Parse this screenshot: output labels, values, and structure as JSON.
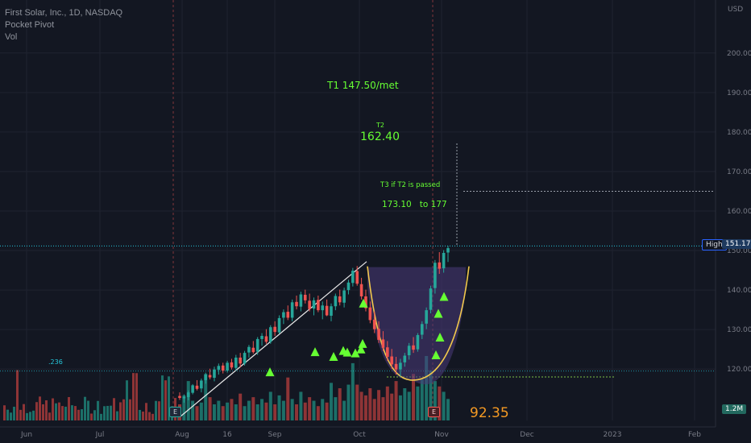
{
  "legend": {
    "symbol": "First Solar, Inc., 1D, NASDAQ",
    "indicator_1": "Pocket Pivot",
    "indicator_2": "Vol"
  },
  "annotations": {
    "t1": "T1 147.50/met",
    "t2_label": "T2",
    "t2_value": "162.40",
    "t3_label": "T3 if T2 is passed",
    "t3_range": "173.10   to 177",
    "low_value": "92.35",
    "fib_label": ".236",
    "high_label": "High",
    "high_value": "151.17",
    "vol_value": "1.2M",
    "earnings_marker": "E"
  },
  "colors": {
    "up": "#26a69a",
    "down": "#ef5350",
    "vol_up": "#1c6f68",
    "vol_down": "#8e3436",
    "signal": "#66ff33",
    "cup": "#f2c94c",
    "cup_fill": "#4a3a7a",
    "background": "#131722"
  },
  "chart_data": {
    "type": "candlestick",
    "currency": "USD",
    "y_axis_ticks": [
      120,
      130,
      140,
      150,
      160,
      170,
      180,
      190,
      200
    ],
    "ylim": [
      107,
      213
    ],
    "x_axis_labels": [
      "Jun",
      "Jul",
      "Aug",
      "16",
      "Sep",
      "Oct",
      "Nov",
      "Dec",
      "2023",
      "Feb"
    ],
    "level_lines": {
      "high": 151.17,
      "fib_236": 119.5,
      "t3_line": 165,
      "cup_rim": 145.8,
      "cup_base": 118
    },
    "candles": [
      [
        113.2,
        114.1,
        112.2,
        112.7
      ],
      [
        112.6,
        113.6,
        111.5,
        113.0
      ],
      [
        112.9,
        114.6,
        112.1,
        114.1
      ],
      [
        114.0,
        116.2,
        113.6,
        115.9
      ],
      [
        115.8,
        117.2,
        114.6,
        115.0
      ],
      [
        115.1,
        117.6,
        114.1,
        117.1
      ],
      [
        117.2,
        119.1,
        116.3,
        118.6
      ],
      [
        118.5,
        120.1,
        117.4,
        117.9
      ],
      [
        117.8,
        120.6,
        116.9,
        119.9
      ],
      [
        119.8,
        121.4,
        118.6,
        120.8
      ],
      [
        120.9,
        121.6,
        118.9,
        119.6
      ],
      [
        119.6,
        122.1,
        119.1,
        121.6
      ],
      [
        121.7,
        122.6,
        119.9,
        120.4
      ],
      [
        120.3,
        123.6,
        119.6,
        122.9
      ],
      [
        122.9,
        124.1,
        120.4,
        121.4
      ],
      [
        121.4,
        124.6,
        120.9,
        124.1
      ],
      [
        124.2,
        126.1,
        122.9,
        125.6
      ],
      [
        125.4,
        127.1,
        123.9,
        124.3
      ],
      [
        124.4,
        128.1,
        123.6,
        127.6
      ],
      [
        127.6,
        129.1,
        125.9,
        128.4
      ],
      [
        128.3,
        130.1,
        126.4,
        126.9
      ],
      [
        126.9,
        131.1,
        126.4,
        130.6
      ],
      [
        130.7,
        132.1,
        128.4,
        129.4
      ],
      [
        129.3,
        133.6,
        128.9,
        132.9
      ],
      [
        133.0,
        135.1,
        131.4,
        134.4
      ],
      [
        134.5,
        136.1,
        132.4,
        133.0
      ],
      [
        133.0,
        137.6,
        132.1,
        136.9
      ],
      [
        137.0,
        138.6,
        135.1,
        135.9
      ],
      [
        135.8,
        139.6,
        134.6,
        138.9
      ],
      [
        138.8,
        140.1,
        136.6,
        137.4
      ],
      [
        137.3,
        139.1,
        134.6,
        135.2
      ],
      [
        135.3,
        138.1,
        133.6,
        137.4
      ],
      [
        137.5,
        138.6,
        134.4,
        134.9
      ],
      [
        134.9,
        137.1,
        132.6,
        136.1
      ],
      [
        136.0,
        137.6,
        133.4,
        133.6
      ],
      [
        133.5,
        136.6,
        132.1,
        135.9
      ],
      [
        135.9,
        139.1,
        134.9,
        138.5
      ],
      [
        138.4,
        140.1,
        136.1,
        136.9
      ],
      [
        136.8,
        140.6,
        135.6,
        139.9
      ],
      [
        140.0,
        142.6,
        138.9,
        141.9
      ],
      [
        141.8,
        145.6,
        140.9,
        144.9
      ],
      [
        144.8,
        146.1,
        141.1,
        141.6
      ],
      [
        141.5,
        143.1,
        137.6,
        138.4
      ],
      [
        138.4,
        140.1,
        134.6,
        135.4
      ],
      [
        135.6,
        137.1,
        131.6,
        132.4
      ],
      [
        132.5,
        134.6,
        129.1,
        130.1
      ],
      [
        130.2,
        132.1,
        126.6,
        127.4
      ],
      [
        127.5,
        129.6,
        124.6,
        125.4
      ],
      [
        125.5,
        127.1,
        122.1,
        123.1
      ],
      [
        123.2,
        125.1,
        120.1,
        121.2
      ],
      [
        121.3,
        123.1,
        118.6,
        119.9
      ],
      [
        119.9,
        122.6,
        118.1,
        121.6
      ],
      [
        121.7,
        124.1,
        120.6,
        123.4
      ],
      [
        123.5,
        126.6,
        122.4,
        125.9
      ],
      [
        126.0,
        128.1,
        124.1,
        124.9
      ],
      [
        125.0,
        129.1,
        124.4,
        128.6
      ],
      [
        128.7,
        132.1,
        127.6,
        131.4
      ],
      [
        131.5,
        135.6,
        130.1,
        134.9
      ],
      [
        135.0,
        141.1,
        134.1,
        140.4
      ],
      [
        140.5,
        147.6,
        139.1,
        146.9
      ],
      [
        147.0,
        149.6,
        144.1,
        145.4
      ],
      [
        145.5,
        150.1,
        144.4,
        149.4
      ],
      [
        149.5,
        151.17,
        147.1,
        150.6
      ]
    ],
    "volume_millions": [
      0.9,
      1.4,
      2.2,
      1.1,
      0.8,
      1.0,
      2.6,
      1.3,
      0.9,
      1.1,
      0.8,
      1.0,
      1.2,
      0.9,
      1.5,
      0.8,
      1.1,
      1.3,
      0.9,
      1.2,
      1.0,
      1.6,
      0.9,
      1.4,
      1.1,
      2.4,
      1.2,
      0.9,
      1.6,
      1.0,
      1.3,
      1.1,
      0.8,
      1.2,
      1.0,
      2.1,
      1.3,
      1.8,
      1.1,
      2.0,
      3.2,
      2.0,
      1.6,
      1.4,
      1.8,
      1.2,
      1.7,
      1.3,
      1.9,
      1.5,
      2.2,
      1.4,
      1.8,
      1.6,
      2.6,
      1.9,
      2.3,
      3.6,
      2.8,
      2.2,
      1.9,
      1.6,
      1.2
    ],
    "pocket_pivot_prices": [
      119.2,
      124.3,
      123.1,
      124.6,
      124.2,
      124.0,
      125.0,
      126.4,
      136.6,
      134.0,
      123.5,
      128.0,
      138.3
    ]
  }
}
